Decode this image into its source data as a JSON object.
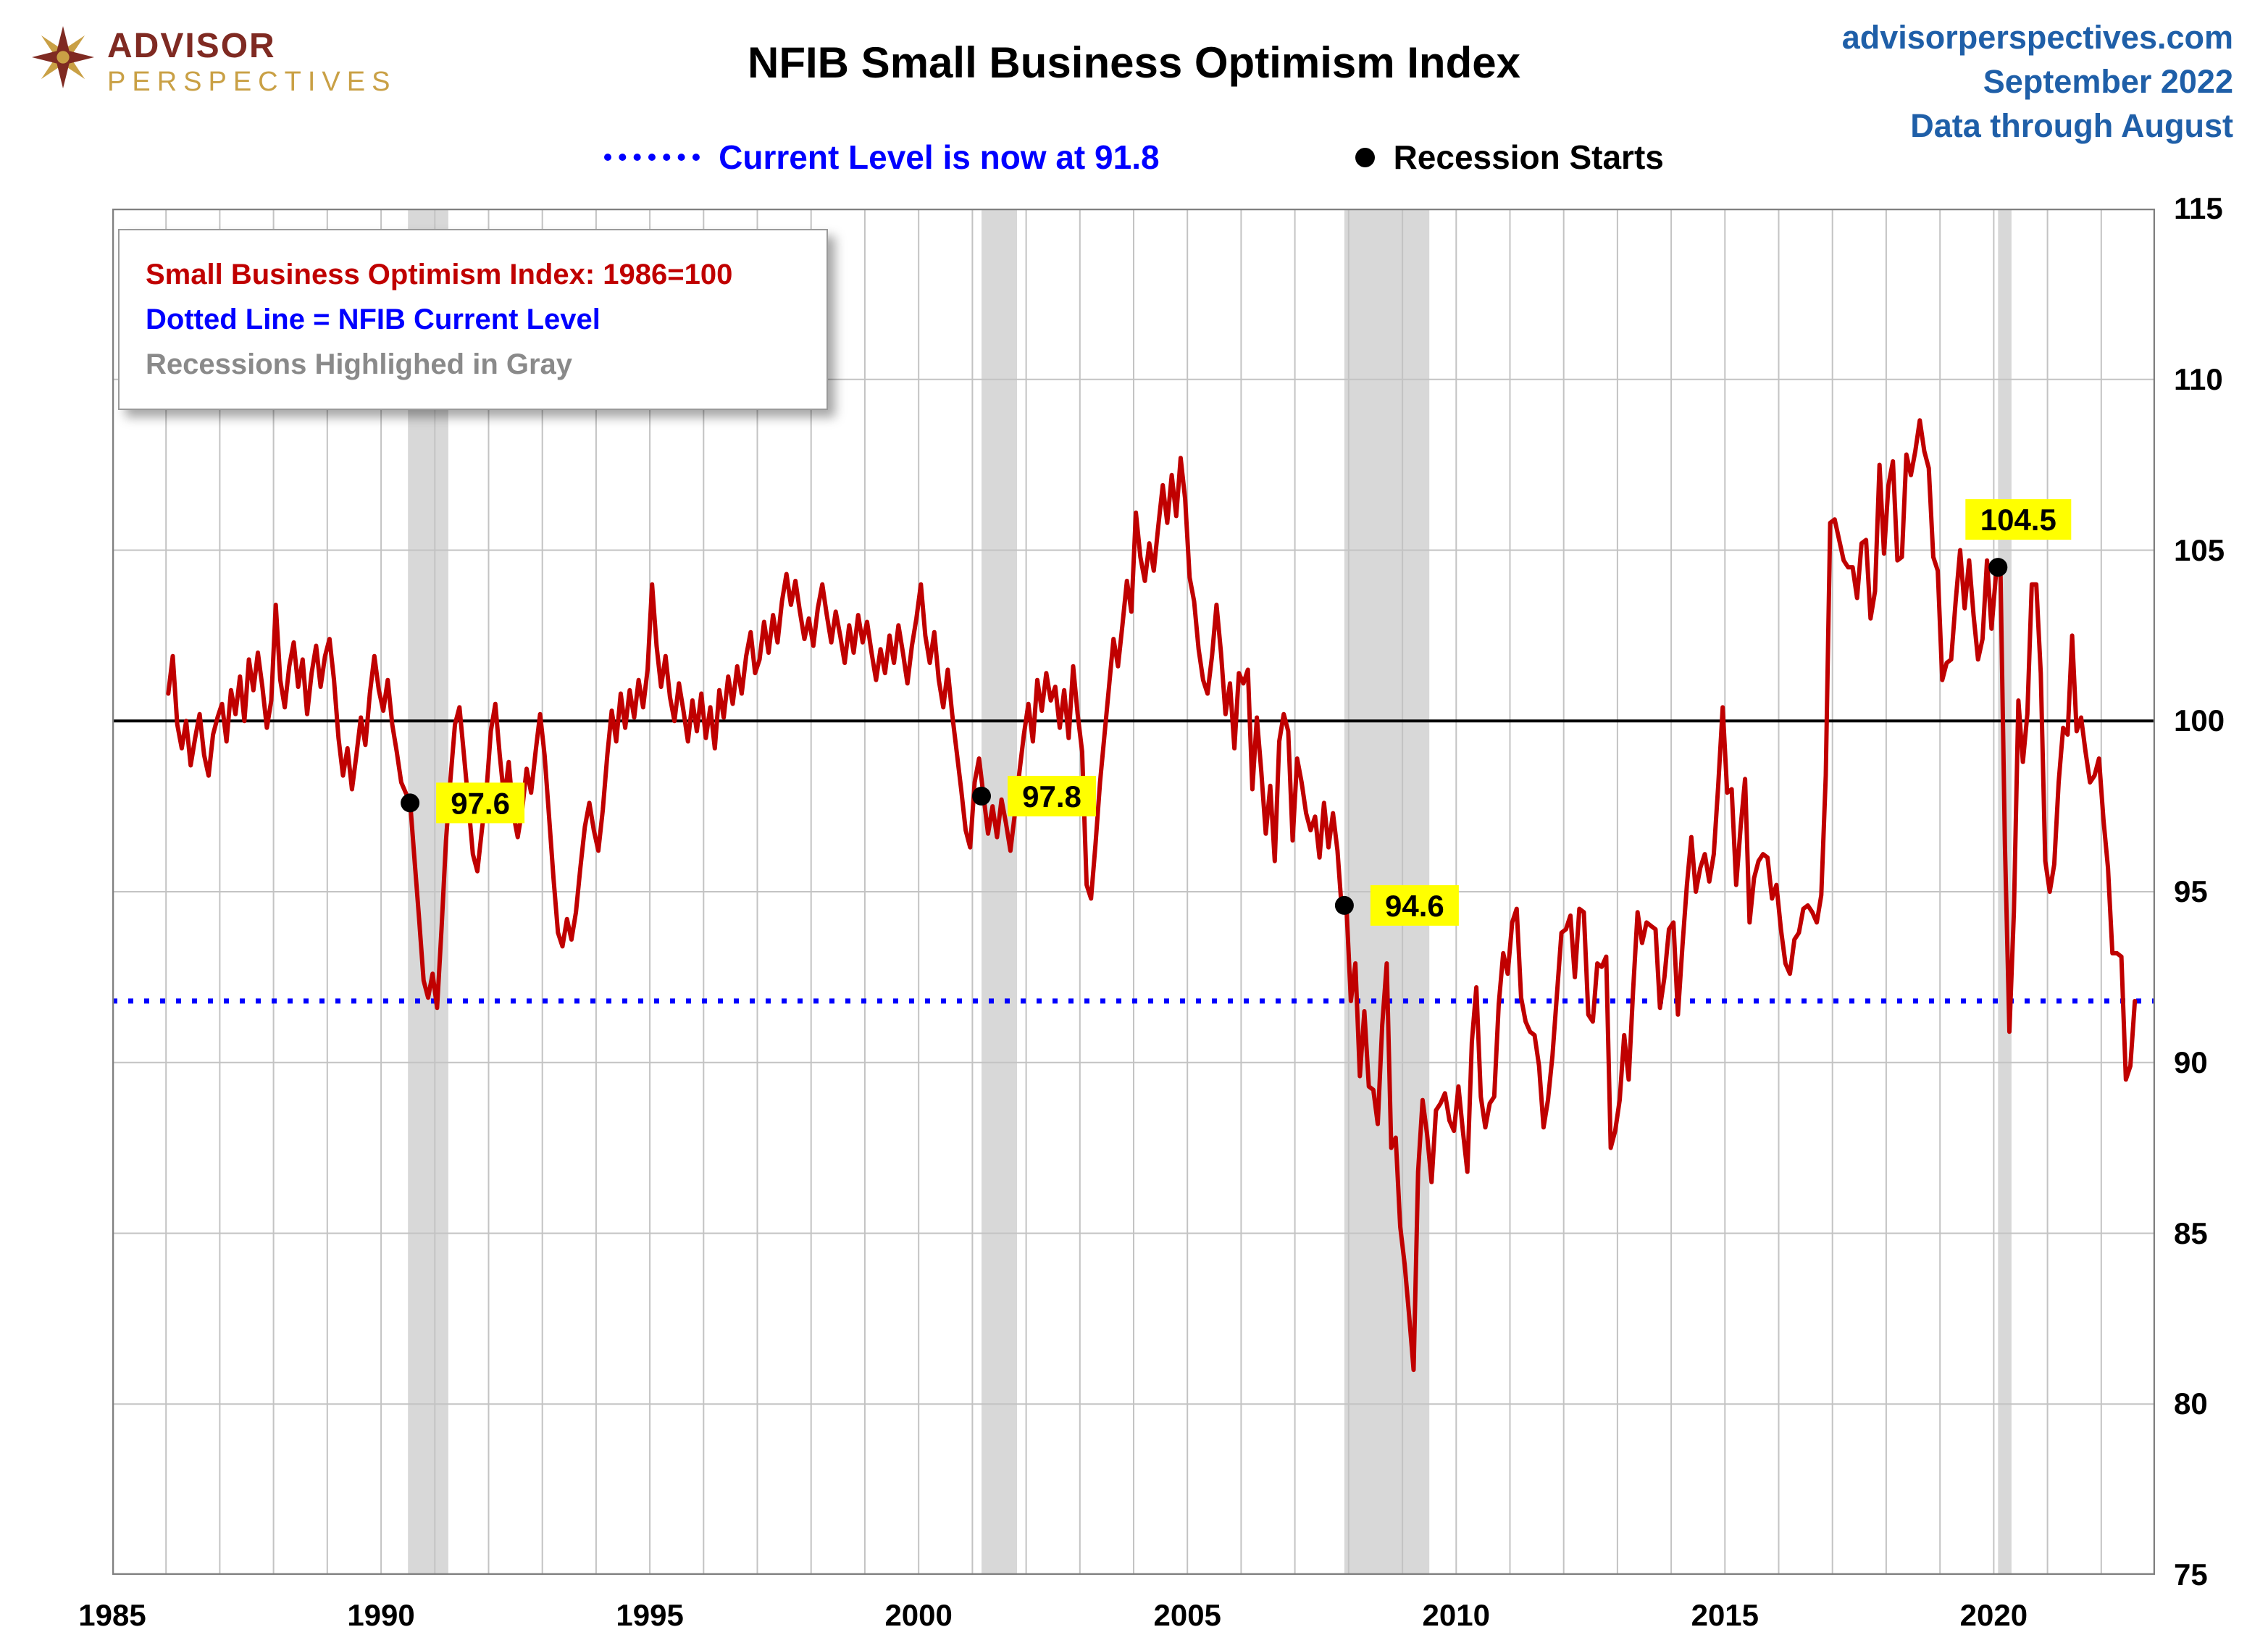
{
  "header": {
    "logo_line1": "ADVISOR",
    "logo_line2": "PERSPECTIVES",
    "title": "NFIB Small Business Optimism Index",
    "site": "advisorperspectives.com",
    "date": "September 2022",
    "data_through": "Data through August"
  },
  "legend": {
    "current_level_label": "Current Level is now at 91.8",
    "recession_starts_label": "Recession Starts"
  },
  "inset_legend": {
    "line1": "Small Business Optimism Index: 1986=100",
    "line2": "Dotted Line = NFIB Current Level",
    "line3": "Recessions Highlighed in Gray"
  },
  "colors": {
    "series": "#C00000",
    "dotted": "#0000FF",
    "reference": "#000000",
    "recession_band": "#D8D8D8",
    "gridline": "#C3C3C3",
    "frame": "#7F7F7F",
    "highlight": "#FFFF00",
    "accent_blue": "#1F5FA8",
    "logo_maroon": "#7F2A22",
    "logo_gold": "#C9A045"
  },
  "chart_data": {
    "type": "line",
    "title": "NFIB Small Business Optimism Index",
    "xlabel": "",
    "ylabel": "",
    "x_range": [
      1985,
      2023
    ],
    "y_range": [
      75,
      115
    ],
    "x_ticks": [
      1985,
      1990,
      1995,
      2000,
      2005,
      2010,
      2015,
      2020
    ],
    "y_ticks": [
      75,
      80,
      85,
      90,
      95,
      100,
      105,
      110,
      115
    ],
    "grid": true,
    "reference_line": 100,
    "current_level": 91.8,
    "recession_bands": [
      [
        1990.5,
        1991.25
      ],
      [
        2001.17,
        2001.83
      ],
      [
        2007.92,
        2009.5
      ],
      [
        2020.08,
        2020.33
      ]
    ],
    "recession_markers": [
      {
        "x": 1990.54,
        "y": 97.6,
        "label": "97.6",
        "label_side": "right"
      },
      {
        "x": 2001.17,
        "y": 97.8,
        "label": "97.8",
        "label_side": "right"
      },
      {
        "x": 2007.92,
        "y": 94.6,
        "label": "94.6",
        "label_side": "right"
      },
      {
        "x": 2020.08,
        "y": 104.5,
        "label": "104.5",
        "label_side": "above"
      }
    ],
    "series": {
      "name": "Small Business Optimism Index (1986=100)",
      "frequency": "monthly",
      "years": [
        {
          "year": 1986,
          "values": [
            100.8,
            101.9,
            99.9,
            99.2,
            100.0,
            98.7,
            99.5,
            100.2,
            99.0,
            98.4,
            99.6,
            100.1
          ]
        },
        {
          "year": 1987,
          "values": [
            100.5,
            99.4,
            100.9,
            100.2,
            101.3,
            100.0,
            101.8,
            100.9,
            102.0,
            101.0,
            99.8,
            100.6
          ]
        },
        {
          "year": 1988,
          "values": [
            103.4,
            101.2,
            100.4,
            101.6,
            102.3,
            101.0,
            101.8,
            100.2,
            101.4,
            102.2,
            101.0,
            101.9
          ]
        },
        {
          "year": 1989,
          "values": [
            102.4,
            101.2,
            99.5,
            98.4,
            99.2,
            98.0,
            99.0,
            100.1,
            99.3,
            100.8,
            101.9,
            100.9
          ]
        },
        {
          "year": 1990,
          "values": [
            100.3,
            101.2,
            99.9,
            99.1,
            98.2,
            97.9,
            97.6,
            95.9,
            94.2,
            92.4,
            91.9,
            92.6
          ]
        },
        {
          "year": 1991,
          "values": [
            91.6,
            93.9,
            96.5,
            98.3,
            99.9,
            100.4,
            99.0,
            97.6,
            96.1,
            95.6,
            96.8,
            97.9
          ]
        },
        {
          "year": 1992,
          "values": [
            99.7,
            100.5,
            99.0,
            97.7,
            98.8,
            97.3,
            96.6,
            97.4,
            98.6,
            97.9,
            99.1,
            100.2
          ]
        },
        {
          "year": 1993,
          "values": [
            99.0,
            97.2,
            95.4,
            93.8,
            93.4,
            94.2,
            93.6,
            94.4,
            95.7,
            96.9,
            97.6,
            96.8
          ]
        },
        {
          "year": 1994,
          "values": [
            96.2,
            97.4,
            99.0,
            100.3,
            99.4,
            100.8,
            99.8,
            100.9,
            100.1,
            101.2,
            100.4,
            101.5
          ]
        },
        {
          "year": 1995,
          "values": [
            104.0,
            102.2,
            101.0,
            101.9,
            100.7,
            100.0,
            101.1,
            100.3,
            99.4,
            100.6,
            99.7,
            100.8
          ]
        },
        {
          "year": 1996,
          "values": [
            99.5,
            100.4,
            99.2,
            100.9,
            100.1,
            101.3,
            100.5,
            101.6,
            100.8,
            101.9,
            102.6,
            101.4
          ]
        },
        {
          "year": 1997,
          "values": [
            101.8,
            102.9,
            102.0,
            103.1,
            102.3,
            103.5,
            104.3,
            103.4,
            104.1,
            103.2,
            102.4,
            103.0
          ]
        },
        {
          "year": 1998,
          "values": [
            102.2,
            103.3,
            104.0,
            103.1,
            102.3,
            103.2,
            102.5,
            101.7,
            102.8,
            102.0,
            103.1,
            102.3
          ]
        },
        {
          "year": 1999,
          "values": [
            102.9,
            102.0,
            101.2,
            102.1,
            101.4,
            102.5,
            101.7,
            102.8,
            102.0,
            101.1,
            102.2,
            103.0
          ]
        },
        {
          "year": 2000,
          "values": [
            104.0,
            102.5,
            101.7,
            102.6,
            101.2,
            100.4,
            101.5,
            100.2,
            99.1,
            98.0,
            96.8,
            96.3
          ]
        },
        {
          "year": 2001,
          "values": [
            98.2,
            98.9,
            97.8,
            96.7,
            97.5,
            96.6,
            97.7,
            97.0,
            96.2,
            97.3,
            98.5,
            99.6
          ]
        },
        {
          "year": 2002,
          "values": [
            100.5,
            99.4,
            101.2,
            100.3,
            101.4,
            100.6,
            101.0,
            99.8,
            100.9,
            99.5,
            101.6,
            100.2
          ]
        },
        {
          "year": 2003,
          "values": [
            99.1,
            95.2,
            94.8,
            96.4,
            98.2,
            99.6,
            101.0,
            102.4,
            101.6,
            102.8,
            104.1,
            103.2
          ]
        },
        {
          "year": 2004,
          "values": [
            106.1,
            104.8,
            104.1,
            105.2,
            104.4,
            105.7,
            106.9,
            105.8,
            107.2,
            106.0,
            107.7,
            106.5
          ]
        },
        {
          "year": 2005,
          "values": [
            104.2,
            103.5,
            102.1,
            101.2,
            100.8,
            101.9,
            103.4,
            102.0,
            100.2,
            101.1,
            99.2,
            101.4
          ]
        },
        {
          "year": 2006,
          "values": [
            101.1,
            101.5,
            98.0,
            100.1,
            98.5,
            96.7,
            98.1,
            95.9,
            99.4,
            100.2,
            99.7,
            96.5
          ]
        },
        {
          "year": 2007,
          "values": [
            98.9,
            98.2,
            97.3,
            96.8,
            97.2,
            96.0,
            97.6,
            96.3,
            97.3,
            96.2,
            94.4,
            94.6
          ]
        },
        {
          "year": 2008,
          "values": [
            91.8,
            92.9,
            89.6,
            91.5,
            89.3,
            89.2,
            88.2,
            91.1,
            92.9,
            87.5,
            87.8,
            85.2
          ]
        },
        {
          "year": 2009,
          "values": [
            84.1,
            82.6,
            81.0,
            86.8,
            88.9,
            87.9,
            86.5,
            88.6,
            88.8,
            89.1,
            88.3,
            88.0
          ]
        },
        {
          "year": 2010,
          "values": [
            89.3,
            88.0,
            86.8,
            90.6,
            92.2,
            89.0,
            88.1,
            88.8,
            89.0,
            91.7,
            93.2,
            92.6
          ]
        },
        {
          "year": 2011,
          "values": [
            94.1,
            94.5,
            91.9,
            91.2,
            90.9,
            90.8,
            89.9,
            88.1,
            88.9,
            90.2,
            92.0,
            93.8
          ]
        },
        {
          "year": 2012,
          "values": [
            93.9,
            94.3,
            92.5,
            94.5,
            94.4,
            91.4,
            91.2,
            92.9,
            92.8,
            93.1,
            87.5,
            88.0
          ]
        },
        {
          "year": 2013,
          "values": [
            88.9,
            90.8,
            89.5,
            92.1,
            94.4,
            93.5,
            94.1,
            94.0,
            93.9,
            91.6,
            92.5,
            93.9
          ]
        },
        {
          "year": 2014,
          "values": [
            94.1,
            91.4,
            93.4,
            95.2,
            96.6,
            95.0,
            95.7,
            96.1,
            95.3,
            96.1,
            98.1,
            100.4
          ]
        },
        {
          "year": 2015,
          "values": [
            97.9,
            98.0,
            95.2,
            96.9,
            98.3,
            94.1,
            95.4,
            95.9,
            96.1,
            96.0,
            94.8,
            95.2
          ]
        },
        {
          "year": 2016,
          "values": [
            93.9,
            92.9,
            92.6,
            93.6,
            93.8,
            94.5,
            94.6,
            94.4,
            94.1,
            94.9,
            98.4,
            105.8
          ]
        },
        {
          "year": 2017,
          "values": [
            105.9,
            105.3,
            104.7,
            104.5,
            104.5,
            103.6,
            105.2,
            105.3,
            103.0,
            103.8,
            107.5,
            104.9
          ]
        },
        {
          "year": 2018,
          "values": [
            106.9,
            107.6,
            104.7,
            104.8,
            107.8,
            107.2,
            107.9,
            108.8,
            107.9,
            107.4,
            104.8,
            104.4
          ]
        },
        {
          "year": 2019,
          "values": [
            101.2,
            101.7,
            101.8,
            103.5,
            105.0,
            103.3,
            104.7,
            103.1,
            101.8,
            102.4,
            104.7,
            102.7
          ]
        },
        {
          "year": 2020,
          "values": [
            104.3,
            104.5,
            96.4,
            90.9,
            94.4,
            100.6,
            98.8,
            100.2,
            104.0,
            104.0,
            101.4,
            95.9
          ]
        },
        {
          "year": 2021,
          "values": [
            95.0,
            95.8,
            98.2,
            99.8,
            99.6,
            102.5,
            99.7,
            100.1,
            99.1,
            98.2,
            98.4,
            98.9
          ]
        },
        {
          "year": 2022,
          "values": [
            97.1,
            95.7,
            93.2,
            93.2,
            93.1,
            89.5,
            89.9,
            91.8
          ]
        }
      ]
    }
  }
}
